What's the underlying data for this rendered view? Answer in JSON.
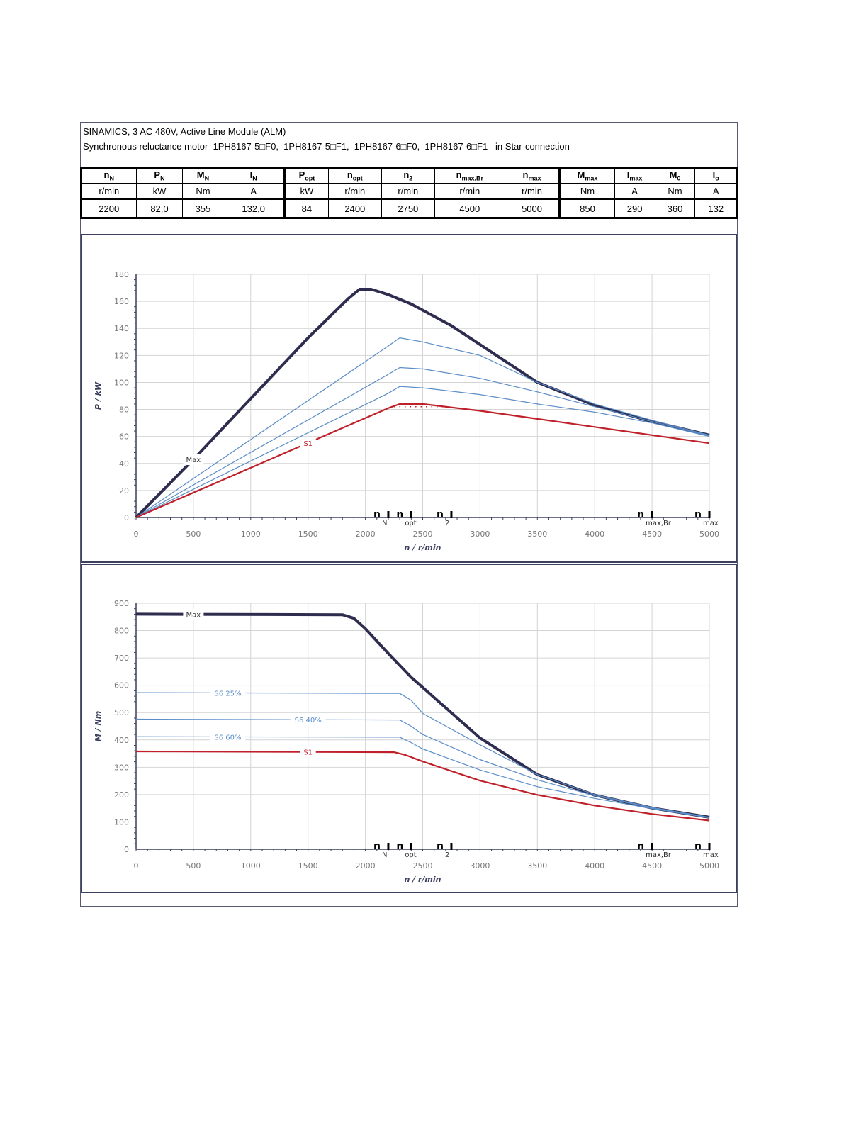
{
  "header": {
    "line1": "SINAMICS, 3 AC 480V, Active Line Module (ALM)",
    "line2": "Synchronous reluctance motor  1PH8167-5□F0,  1PH8167-5□F1,  1PH8167-6□F0,  1PH8167-6□F1   in Star-connection"
  },
  "table": {
    "columns": [
      {
        "sym": "n",
        "sub": "N"
      },
      {
        "sym": "P",
        "sub": "N"
      },
      {
        "sym": "M",
        "sub": "N"
      },
      {
        "sym": "I",
        "sub": "N"
      },
      {
        "sym": "P",
        "sub": "opt"
      },
      {
        "sym": "n",
        "sub": "opt"
      },
      {
        "sym": "n",
        "sub": "2"
      },
      {
        "sym": "n",
        "sub": "max,Br"
      },
      {
        "sym": "n",
        "sub": "max"
      },
      {
        "sym": "M",
        "sub": "max"
      },
      {
        "sym": "I",
        "sub": "max"
      },
      {
        "sym": "M",
        "sub": "0"
      },
      {
        "sym": "I",
        "sub": "o"
      }
    ],
    "units": [
      "r/min",
      "kW",
      "Nm",
      "A",
      "kW",
      "r/min",
      "r/min",
      "r/min",
      "r/min",
      "Nm",
      "A",
      "Nm",
      "A"
    ],
    "values": [
      "2200",
      "82,0",
      "355",
      "132,0",
      "84",
      "2400",
      "2750",
      "4500",
      "5000",
      "850",
      "290",
      "360",
      "132"
    ]
  },
  "chart_data": [
    {
      "type": "line",
      "xlabel": "n / r/min",
      "ylabel": "P / kW",
      "xlim": [
        0,
        5000
      ],
      "ylim": [
        0,
        180
      ],
      "xticks": [
        0,
        500,
        1000,
        1500,
        2000,
        2500,
        3000,
        3500,
        4000,
        4500,
        5000
      ],
      "yticks": [
        0,
        20,
        40,
        60,
        80,
        100,
        120,
        140,
        160,
        180
      ],
      "grid": true,
      "markers": [
        {
          "label": "n",
          "sub": "N",
          "x": 2200
        },
        {
          "label": "n",
          "sub": "opt",
          "x": 2400
        },
        {
          "label": "n",
          "sub": "2",
          "x": 2750
        },
        {
          "label": "n",
          "sub": "max,Br",
          "x": 4500
        },
        {
          "label": "n",
          "sub": "max",
          "x": 5000
        }
      ],
      "series": [
        {
          "name": "Max",
          "color": "#2e2d4f",
          "width": 4,
          "label_at": 500,
          "x": [
            0,
            500,
            1000,
            1500,
            1850,
            1950,
            2050,
            2200,
            2400,
            2750,
            3000,
            3500,
            4000,
            4500,
            5000
          ],
          "y": [
            0,
            43,
            88,
            133,
            162,
            169,
            169,
            165,
            158,
            142,
            128,
            100,
            83,
            71,
            61
          ]
        },
        {
          "name": "",
          "color": "#5b8dc8",
          "width": 1.2,
          "x": [
            0,
            2200,
            2300,
            2500,
            3000,
            3500,
            4000,
            4500,
            5000
          ],
          "y": [
            0,
            127,
            133,
            130,
            120,
            100,
            84,
            72,
            61
          ]
        },
        {
          "name": "",
          "color": "#5b8dc8",
          "width": 1.2,
          "x": [
            0,
            2200,
            2300,
            2500,
            3000,
            3500,
            4000,
            4500,
            5000
          ],
          "y": [
            0,
            106,
            111,
            110,
            103,
            93,
            82,
            71,
            60.5
          ]
        },
        {
          "name": "",
          "color": "#5b8dc8",
          "width": 1.2,
          "x": [
            0,
            2200,
            2300,
            2500,
            3000,
            3500,
            4000,
            4500,
            5000
          ],
          "y": [
            0,
            92,
            97,
            96,
            91,
            84,
            78,
            70,
            60
          ]
        },
        {
          "name": "S1",
          "color": "#c0202a",
          "width": 2.2,
          "label_at": 1500,
          "x": [
            0,
            2200,
            2300,
            2500,
            3000,
            3500,
            4000,
            4500,
            5000
          ],
          "y": [
            0,
            81,
            84,
            84,
            79,
            73,
            67,
            61,
            55
          ]
        }
      ],
      "dotted": {
        "color": "#c0202a",
        "x": [
          2250,
          2750
        ],
        "y": 82
      }
    },
    {
      "type": "line",
      "xlabel": "n / r/min",
      "ylabel": "M / Nm",
      "xlim": [
        0,
        5000
      ],
      "ylim": [
        0,
        900
      ],
      "xticks": [
        0,
        500,
        1000,
        1500,
        2000,
        2500,
        3000,
        3500,
        4000,
        4500,
        5000
      ],
      "yticks": [
        0,
        100,
        200,
        300,
        400,
        500,
        600,
        700,
        800,
        900
      ],
      "grid": true,
      "markers": [
        {
          "label": "n",
          "sub": "N",
          "x": 2200
        },
        {
          "label": "n",
          "sub": "opt",
          "x": 2400
        },
        {
          "label": "n",
          "sub": "2",
          "x": 2750
        },
        {
          "label": "n",
          "sub": "max,Br",
          "x": 4500
        },
        {
          "label": "n",
          "sub": "max",
          "x": 5000
        }
      ],
      "series": [
        {
          "name": "Max",
          "color": "#2e2d4f",
          "width": 4,
          "label_at": 500,
          "x": [
            0,
            1800,
            1900,
            2000,
            2200,
            2400,
            2500,
            3000,
            3500,
            4000,
            4500,
            5000
          ],
          "y": [
            860,
            858,
            845,
            807,
            716,
            629,
            592,
            407,
            273,
            198,
            151,
            117
          ]
        },
        {
          "name": "S6 25%",
          "color": "#5b8dc8",
          "width": 1.2,
          "label_at": 800,
          "x": [
            0,
            2300,
            2400,
            2500,
            3000,
            3500,
            4000,
            4500,
            5000
          ],
          "y": [
            573,
            570,
            545,
            497,
            382,
            273,
            200,
            153,
            117
          ]
        },
        {
          "name": "S6 40%",
          "color": "#5b8dc8",
          "width": 1.2,
          "label_at": 1500,
          "x": [
            0,
            2300,
            2400,
            2500,
            3000,
            3500,
            4000,
            4500,
            5000
          ],
          "y": [
            476,
            473,
            450,
            420,
            328,
            254,
            196,
            151,
            116
          ]
        },
        {
          "name": "S6 60%",
          "color": "#5b8dc8",
          "width": 1.2,
          "label_at": 800,
          "x": [
            0,
            2300,
            2400,
            2500,
            3000,
            3500,
            4000,
            4500,
            5000
          ],
          "y": [
            412,
            410,
            390,
            367,
            290,
            229,
            186,
            149,
            115
          ]
        },
        {
          "name": "S1",
          "color": "#c0202a",
          "width": 2.2,
          "label_at": 1500,
          "x": [
            0,
            2250,
            2350,
            2500,
            3000,
            3500,
            4000,
            4500,
            5000
          ],
          "y": [
            358,
            355,
            345,
            321,
            251,
            199,
            160,
            129,
            105
          ]
        }
      ]
    }
  ]
}
